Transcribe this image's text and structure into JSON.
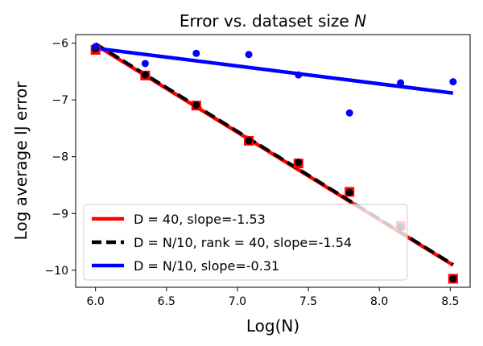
{
  "chart_data": {
    "type": "scatter",
    "title": "Error vs. dataset size",
    "title_var": "N",
    "xlabel": "Log(N)",
    "ylabel": "Log average IJ error",
    "xlim": [
      5.86,
      8.64
    ],
    "ylim": [
      -10.3,
      -5.85
    ],
    "xticks": [
      6.0,
      6.5,
      7.0,
      7.5,
      8.0,
      8.5
    ],
    "xtick_labels": [
      "6.0",
      "6.5",
      "7.0",
      "7.5",
      "8.0",
      "8.5"
    ],
    "yticks": [
      -6,
      -7,
      -8,
      -9,
      -10
    ],
    "ytick_labels": [
      "−6",
      "−7",
      "−8",
      "−9",
      "−10"
    ],
    "legend_position": "lower-left",
    "series": [
      {
        "name": "D = 40,  slope=-1.53",
        "color": "#ff0000",
        "marker": "square",
        "line_style": "solid",
        "x": [
          6.0,
          6.35,
          6.71,
          7.08,
          7.43,
          7.79,
          8.15,
          8.52
        ],
        "y": [
          -6.12,
          -6.57,
          -7.1,
          -7.72,
          -8.12,
          -8.62,
          -9.22,
          -10.15
        ],
        "fit": [
          [
            6.0,
            -6.03
          ],
          [
            8.52,
            -9.91
          ]
        ]
      },
      {
        "name": "D = N/10, rank = 40,  slope=-1.54",
        "color": "#000000",
        "marker": "circle",
        "line_style": "dashed",
        "x": [
          6.0,
          6.35,
          6.71,
          7.08,
          7.43,
          7.79,
          8.15,
          8.52
        ],
        "y": [
          -6.1,
          -6.56,
          -7.09,
          -7.72,
          -8.1,
          -8.63,
          -9.24,
          -10.15
        ],
        "fit": [
          [
            6.0,
            -6.01
          ],
          [
            8.52,
            -9.9
          ]
        ]
      },
      {
        "name": "D = N/10,  slope=-0.31",
        "color": "#0000ff",
        "marker": "circle",
        "line_style": "solid",
        "x": [
          6.0,
          6.35,
          6.71,
          7.08,
          7.43,
          7.79,
          8.15,
          8.52
        ],
        "y": [
          -6.06,
          -6.36,
          -6.18,
          -6.2,
          -6.56,
          -7.23,
          -6.7,
          -6.68
        ],
        "fit": [
          [
            6.0,
            -6.09
          ],
          [
            8.52,
            -6.88
          ]
        ]
      }
    ]
  }
}
